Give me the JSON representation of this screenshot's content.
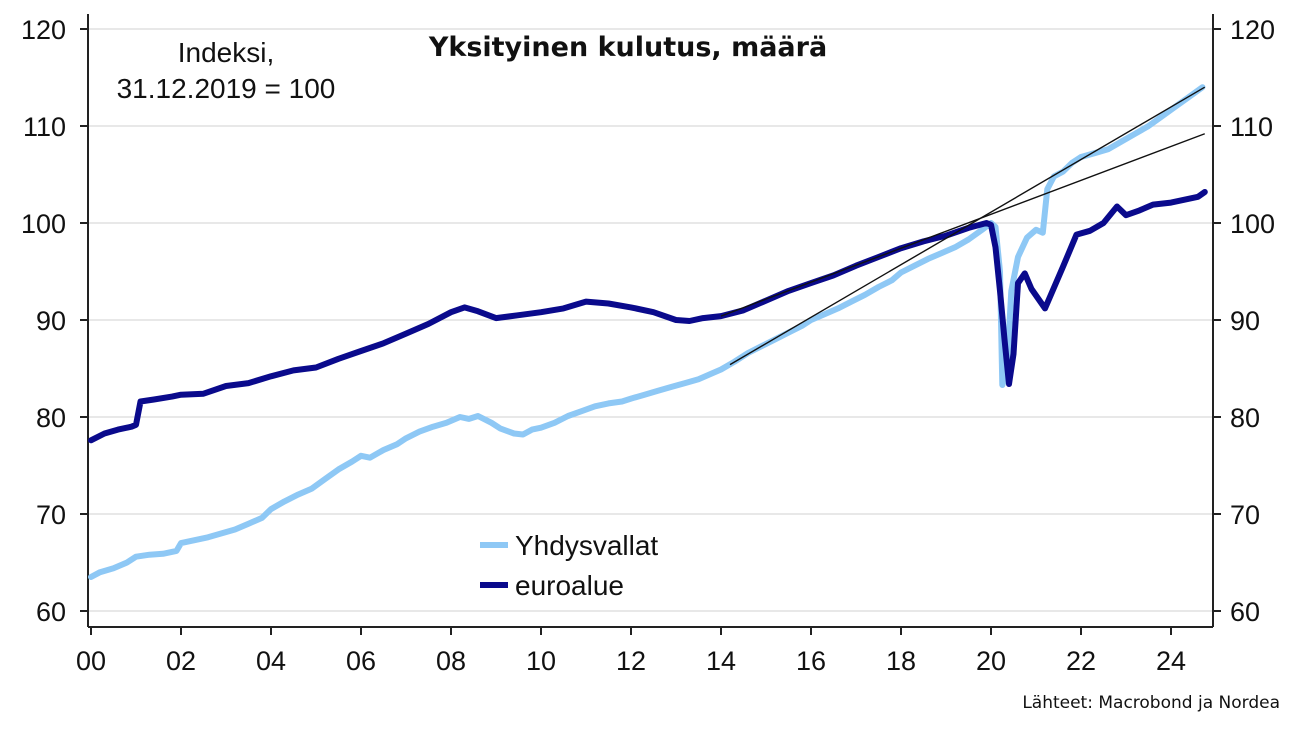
{
  "chart_data": {
    "type": "line",
    "title": "Yksityinen kulutus, määrä",
    "index_note": [
      "Indeksi,",
      "31.12.2019 = 100"
    ],
    "source": "Lähteet: Macrobond ja Nordea",
    "x_range": [
      2000,
      2024.8
    ],
    "x_ticks": [
      {
        "value": 2000,
        "label": "00"
      },
      {
        "value": 2002,
        "label": "02"
      },
      {
        "value": 2004,
        "label": "04"
      },
      {
        "value": 2006,
        "label": "06"
      },
      {
        "value": 2008,
        "label": "08"
      },
      {
        "value": 2010,
        "label": "10"
      },
      {
        "value": 2012,
        "label": "12"
      },
      {
        "value": 2014,
        "label": "14"
      },
      {
        "value": 2016,
        "label": "16"
      },
      {
        "value": 2018,
        "label": "18"
      },
      {
        "value": 2020,
        "label": "20"
      },
      {
        "value": 2022,
        "label": "22"
      },
      {
        "value": 2024,
        "label": "24"
      }
    ],
    "ylim": [
      58,
      122
    ],
    "y_ticks": [
      60,
      70,
      80,
      90,
      100,
      110,
      120
    ],
    "grid": true,
    "legend_position": "bottom-center",
    "series": [
      {
        "name": "Yhdysvallat",
        "color": "#8ec8f5",
        "points": [
          [
            2000.0,
            63.5
          ],
          [
            2000.2,
            64.0
          ],
          [
            2000.5,
            64.4
          ],
          [
            2000.8,
            65.0
          ],
          [
            2001.0,
            65.6
          ],
          [
            2001.3,
            65.8
          ],
          [
            2001.6,
            65.9
          ],
          [
            2001.9,
            66.2
          ],
          [
            2002.0,
            67.0
          ],
          [
            2002.3,
            67.3
          ],
          [
            2002.6,
            67.6
          ],
          [
            2002.9,
            68.0
          ],
          [
            2003.2,
            68.4
          ],
          [
            2003.5,
            69.0
          ],
          [
            2003.8,
            69.6
          ],
          [
            2004.0,
            70.5
          ],
          [
            2004.3,
            71.3
          ],
          [
            2004.6,
            72.0
          ],
          [
            2004.9,
            72.6
          ],
          [
            2005.2,
            73.6
          ],
          [
            2005.5,
            74.6
          ],
          [
            2005.8,
            75.4
          ],
          [
            2006.0,
            76.0
          ],
          [
            2006.2,
            75.8
          ],
          [
            2006.5,
            76.6
          ],
          [
            2006.8,
            77.2
          ],
          [
            2007.0,
            77.8
          ],
          [
            2007.3,
            78.5
          ],
          [
            2007.6,
            79.0
          ],
          [
            2007.9,
            79.4
          ],
          [
            2008.2,
            80.0
          ],
          [
            2008.4,
            79.8
          ],
          [
            2008.6,
            80.1
          ],
          [
            2008.9,
            79.4
          ],
          [
            2009.1,
            78.8
          ],
          [
            2009.4,
            78.3
          ],
          [
            2009.6,
            78.2
          ],
          [
            2009.8,
            78.7
          ],
          [
            2010.0,
            78.9
          ],
          [
            2010.3,
            79.4
          ],
          [
            2010.6,
            80.1
          ],
          [
            2010.9,
            80.6
          ],
          [
            2011.2,
            81.1
          ],
          [
            2011.5,
            81.4
          ],
          [
            2011.8,
            81.6
          ],
          [
            2012.0,
            81.9
          ],
          [
            2012.3,
            82.3
          ],
          [
            2012.6,
            82.7
          ],
          [
            2012.9,
            83.1
          ],
          [
            2013.2,
            83.5
          ],
          [
            2013.5,
            83.9
          ],
          [
            2013.8,
            84.5
          ],
          [
            2014.0,
            84.9
          ],
          [
            2014.3,
            85.7
          ],
          [
            2014.6,
            86.6
          ],
          [
            2014.9,
            87.3
          ],
          [
            2015.2,
            88.0
          ],
          [
            2015.5,
            88.7
          ],
          [
            2015.8,
            89.4
          ],
          [
            2016.0,
            90.0
          ],
          [
            2016.3,
            90.6
          ],
          [
            2016.6,
            91.2
          ],
          [
            2016.9,
            91.9
          ],
          [
            2017.2,
            92.6
          ],
          [
            2017.5,
            93.4
          ],
          [
            2017.8,
            94.1
          ],
          [
            2018.0,
            94.9
          ],
          [
            2018.3,
            95.6
          ],
          [
            2018.6,
            96.3
          ],
          [
            2018.9,
            96.9
          ],
          [
            2019.2,
            97.5
          ],
          [
            2019.5,
            98.3
          ],
          [
            2019.8,
            99.3
          ],
          [
            2020.0,
            100.0
          ],
          [
            2020.1,
            99.6
          ],
          [
            2020.2,
            95.0
          ],
          [
            2020.25,
            83.3
          ],
          [
            2020.35,
            84.5
          ],
          [
            2020.45,
            93.0
          ],
          [
            2020.6,
            96.5
          ],
          [
            2020.8,
            98.5
          ],
          [
            2021.0,
            99.3
          ],
          [
            2021.15,
            99.0
          ],
          [
            2021.25,
            103.5
          ],
          [
            2021.4,
            104.8
          ],
          [
            2021.6,
            105.3
          ],
          [
            2021.8,
            106.2
          ],
          [
            2022.0,
            106.8
          ],
          [
            2022.3,
            107.2
          ],
          [
            2022.6,
            107.6
          ],
          [
            2022.9,
            108.4
          ],
          [
            2023.2,
            109.2
          ],
          [
            2023.5,
            110.0
          ],
          [
            2023.8,
            111.0
          ],
          [
            2024.1,
            112.0
          ],
          [
            2024.4,
            113.0
          ],
          [
            2024.7,
            114.0
          ]
        ]
      },
      {
        "name": "euroalue",
        "color": "#0a0a8c",
        "points": [
          [
            2000.0,
            77.6
          ],
          [
            2000.3,
            78.3
          ],
          [
            2000.6,
            78.7
          ],
          [
            2000.9,
            79.0
          ],
          [
            2001.0,
            79.2
          ],
          [
            2001.1,
            81.6
          ],
          [
            2001.4,
            81.8
          ],
          [
            2001.8,
            82.1
          ],
          [
            2002.0,
            82.3
          ],
          [
            2002.5,
            82.4
          ],
          [
            2003.0,
            83.2
          ],
          [
            2003.5,
            83.5
          ],
          [
            2004.0,
            84.2
          ],
          [
            2004.5,
            84.8
          ],
          [
            2005.0,
            85.1
          ],
          [
            2005.5,
            86.0
          ],
          [
            2006.0,
            86.8
          ],
          [
            2006.5,
            87.6
          ],
          [
            2007.0,
            88.6
          ],
          [
            2007.5,
            89.6
          ],
          [
            2008.0,
            90.8
          ],
          [
            2008.3,
            91.3
          ],
          [
            2008.6,
            90.9
          ],
          [
            2009.0,
            90.2
          ],
          [
            2009.5,
            90.5
          ],
          [
            2010.0,
            90.8
          ],
          [
            2010.5,
            91.2
          ],
          [
            2011.0,
            91.9
          ],
          [
            2011.5,
            91.7
          ],
          [
            2012.0,
            91.3
          ],
          [
            2012.5,
            90.8
          ],
          [
            2013.0,
            90.0
          ],
          [
            2013.3,
            89.9
          ],
          [
            2013.6,
            90.2
          ],
          [
            2014.0,
            90.4
          ],
          [
            2014.5,
            91.0
          ],
          [
            2015.0,
            92.0
          ],
          [
            2015.5,
            93.0
          ],
          [
            2016.0,
            93.8
          ],
          [
            2016.5,
            94.6
          ],
          [
            2017.0,
            95.6
          ],
          [
            2017.5,
            96.5
          ],
          [
            2018.0,
            97.4
          ],
          [
            2018.5,
            98.1
          ],
          [
            2019.0,
            98.7
          ],
          [
            2019.5,
            99.5
          ],
          [
            2019.9,
            100.0
          ],
          [
            2020.0,
            99.8
          ],
          [
            2020.1,
            97.5
          ],
          [
            2020.2,
            93.0
          ],
          [
            2020.3,
            88.0
          ],
          [
            2020.4,
            83.4
          ],
          [
            2020.5,
            86.5
          ],
          [
            2020.6,
            93.8
          ],
          [
            2020.75,
            94.8
          ],
          [
            2020.9,
            93.2
          ],
          [
            2021.2,
            91.2
          ],
          [
            2021.6,
            95.5
          ],
          [
            2021.9,
            98.8
          ],
          [
            2022.2,
            99.2
          ],
          [
            2022.5,
            100.0
          ],
          [
            2022.8,
            101.7
          ],
          [
            2023.0,
            100.8
          ],
          [
            2023.3,
            101.3
          ],
          [
            2023.6,
            101.9
          ],
          [
            2024.0,
            102.1
          ],
          [
            2024.3,
            102.4
          ],
          [
            2024.6,
            102.7
          ],
          [
            2024.75,
            103.2
          ]
        ]
      }
    ],
    "trend_lines": [
      {
        "color": "#111111",
        "points": [
          [
            2014.2,
            85.4
          ],
          [
            2024.75,
            114.0
          ]
        ]
      },
      {
        "color": "#111111",
        "points": [
          [
            2014.0,
            90.4
          ],
          [
            2024.75,
            109.2
          ]
        ]
      }
    ]
  }
}
